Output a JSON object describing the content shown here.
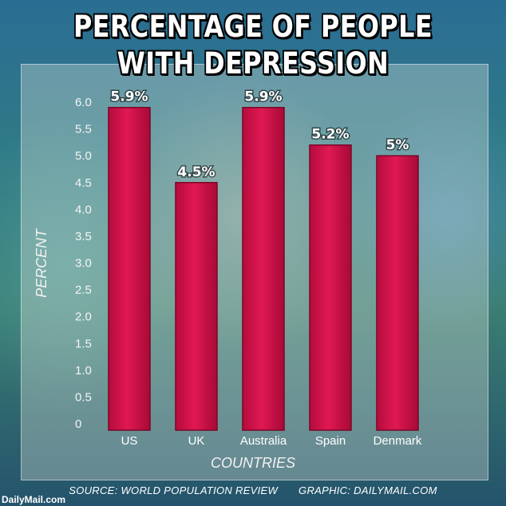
{
  "header": {
    "title_line1": "PERCENTAGE OF PEOPLE",
    "title_line2": "WITH DEPRESSION"
  },
  "chart_data": {
    "type": "bar",
    "categories": [
      "US",
      "UK",
      "Australia",
      "Spain",
      "Denmark"
    ],
    "values": [
      5.9,
      4.5,
      5.9,
      5.2,
      5.0
    ],
    "data_labels": [
      "5.9%",
      "4.5%",
      "5.9%",
      "5.2%",
      "5%"
    ],
    "title": "PERCENTAGE OF PEOPLE WITH DEPRESSION",
    "xlabel": "COUNTRIES",
    "ylabel": "PERCENT",
    "ylim": [
      0,
      6.0
    ],
    "yticks": [
      "0",
      "0.5",
      "1.0",
      "1.5",
      "2.0",
      "2.5",
      "3.0",
      "3.5",
      "4.0",
      "4.5",
      "5.0",
      "5.5",
      "6.0"
    ],
    "grid": false,
    "bar_color": "#d3104a"
  },
  "footer": {
    "source": "SOURCE: WORLD POPULATION REVIEW",
    "graphic": "GRAPHIC: DAILYMAIL.COM",
    "logo": "DailyMail.com"
  }
}
